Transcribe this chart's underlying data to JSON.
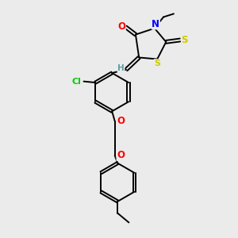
{
  "bg_color": "#ebebeb",
  "bond_color": "#000000",
  "atom_colors": {
    "O": "#ff0000",
    "N": "#0000ff",
    "S": "#cccc00",
    "Cl": "#00cc00",
    "H": "#5f9ea0",
    "C": "#000000"
  },
  "figsize": [
    3.0,
    3.0
  ],
  "dpi": 100
}
